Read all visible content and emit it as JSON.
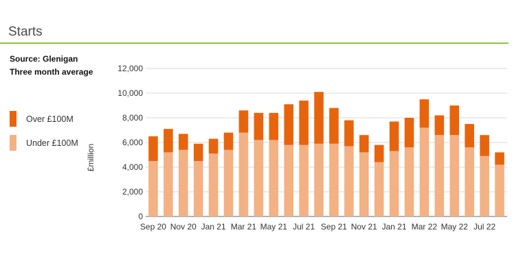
{
  "header": {
    "title": "Starts"
  },
  "source": {
    "line1": "Source: Glenigan",
    "line2": "Three month average"
  },
  "legend": [
    {
      "label": "Over £100M",
      "color": "#e8640c"
    },
    {
      "label": "Under £100M",
      "color": "#f4b183"
    }
  ],
  "colors": {
    "accent_rule": "#8cc63f",
    "grid": "#d9d9d9",
    "axis": "#666666"
  },
  "chart_data": {
    "type": "bar",
    "stacked": true,
    "title": "Starts",
    "ylabel": "£million",
    "ylim": [
      0,
      12000
    ],
    "yticks": [
      0,
      2000,
      4000,
      6000,
      8000,
      10000,
      12000
    ],
    "ytick_labels": [
      "0",
      "2,000",
      "4,000",
      "6,000",
      "8,000",
      "10,000",
      "12,000"
    ],
    "categories": [
      "Sep 20",
      "Oct 20",
      "Nov 20",
      "Dec 20",
      "Jan 21",
      "Feb 21",
      "Mar 21",
      "Apr 21",
      "May 21",
      "Jun 21",
      "Jul 21",
      "Aug 21",
      "Sep 21",
      "Oct 21",
      "Nov 21",
      "Dec 21",
      "Jan 21",
      "Feb 22",
      "Mar 22",
      "Apr 22",
      "May 22",
      "Jun 22",
      "Jul 22",
      "Aug 22"
    ],
    "xtick_labels": [
      "Sep 20",
      "Nov 20",
      "Jan 21",
      "Mar 21",
      "May 21",
      "Jul 21",
      "Sep 21",
      "Nov 21",
      "Jan 21",
      "Mar 22",
      "May 22",
      "Jul 22"
    ],
    "xtick_every": 2,
    "series": [
      {
        "name": "Under £100M",
        "color": "#f4b183",
        "values": [
          4500,
          5200,
          5400,
          4500,
          5100,
          5400,
          6800,
          6200,
          6200,
          5800,
          5800,
          5900,
          5900,
          5700,
          5200,
          4400,
          5300,
          5600,
          7200,
          6600,
          6600,
          5600,
          4900,
          4200
        ]
      },
      {
        "name": "Over £100M",
        "color": "#e8640c",
        "values": [
          2000,
          1900,
          1300,
          1400,
          1200,
          1400,
          1800,
          2200,
          2200,
          3300,
          3600,
          4200,
          2900,
          2100,
          1400,
          1400,
          2400,
          2400,
          2300,
          1600,
          2400,
          1900,
          1700,
          1000
        ]
      }
    ],
    "grid": "horizontal",
    "legend_position": "left"
  }
}
